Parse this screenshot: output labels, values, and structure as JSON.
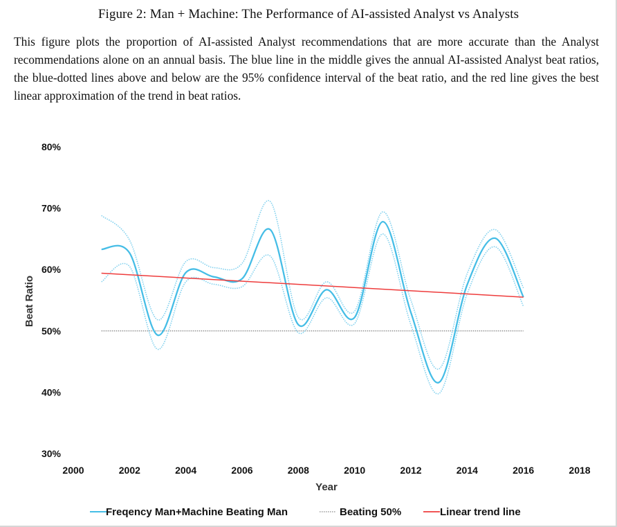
{
  "figure": {
    "title": "Figure 2: Man + Machine: The Performance of AI-assisted Analyst vs Analysts",
    "caption": "This figure plots the proportion of AI-assisted Analyst recommendations that are more accurate than the Analyst recommendations alone on an annual basis. The blue line in the middle gives the annual AI-assisted Analyst beat ratios, the blue-dotted lines above and below are the 95% confidence interval of the beat ratio, and the red line gives the best linear approximation of the trend in beat ratios."
  },
  "colors": {
    "main_line": "#45bde6",
    "ci_line": "#7fd0ee",
    "trend_line": "#ee3b3b",
    "baseline": "#888888"
  },
  "chart_data": {
    "type": "line",
    "title": "",
    "xlabel": "Year",
    "ylabel": "Beat Ratio",
    "xlim": [
      2000,
      2018
    ],
    "ylim": [
      30,
      80
    ],
    "x_ticks": [
      "2000",
      "2002",
      "2004",
      "2006",
      "2008",
      "2010",
      "2012",
      "2014",
      "2016",
      "2018"
    ],
    "y_ticks": [
      "30%",
      "40%",
      "50%",
      "60%",
      "70%",
      "80%"
    ],
    "grid": false,
    "legend_position": "bottom",
    "x": [
      2001,
      2002,
      2003,
      2004,
      2005,
      2006,
      2007,
      2008,
      2009,
      2010,
      2011,
      2012,
      2013,
      2014,
      2015,
      2016
    ],
    "series": [
      {
        "name": "Freqency Man+Machine Beating Man",
        "role": "main",
        "values": [
          63.3,
          62.7,
          49.3,
          59.5,
          58.8,
          58.5,
          66.5,
          51.0,
          56.7,
          52.2,
          67.8,
          53.0,
          41.6,
          57.5,
          65.1,
          55.5
        ]
      },
      {
        "name": "",
        "role": "ci_upper",
        "values": [
          68.8,
          64.8,
          51.8,
          61.3,
          60.3,
          61.0,
          71.1,
          52.2,
          58.0,
          53.2,
          69.4,
          55.0,
          43.8,
          59.3,
          66.5,
          57.0
        ]
      },
      {
        "name": "",
        "role": "ci_lower",
        "values": [
          58.0,
          60.5,
          47.0,
          58.0,
          57.6,
          57.2,
          62.2,
          49.7,
          55.4,
          51.2,
          65.8,
          51.0,
          39.8,
          56.0,
          63.7,
          54.0
        ]
      },
      {
        "name": "Beating 50%",
        "role": "baseline",
        "values": [
          50,
          50,
          50,
          50,
          50,
          50,
          50,
          50,
          50,
          50,
          50,
          50,
          50,
          50,
          50,
          50
        ]
      },
      {
        "name": "Linear trend line",
        "role": "trend",
        "values": [
          59.4,
          59.1,
          58.85,
          58.6,
          58.35,
          58.1,
          57.8,
          57.55,
          57.3,
          57.05,
          56.75,
          56.5,
          56.25,
          55.95,
          55.75,
          55.5
        ]
      }
    ]
  }
}
